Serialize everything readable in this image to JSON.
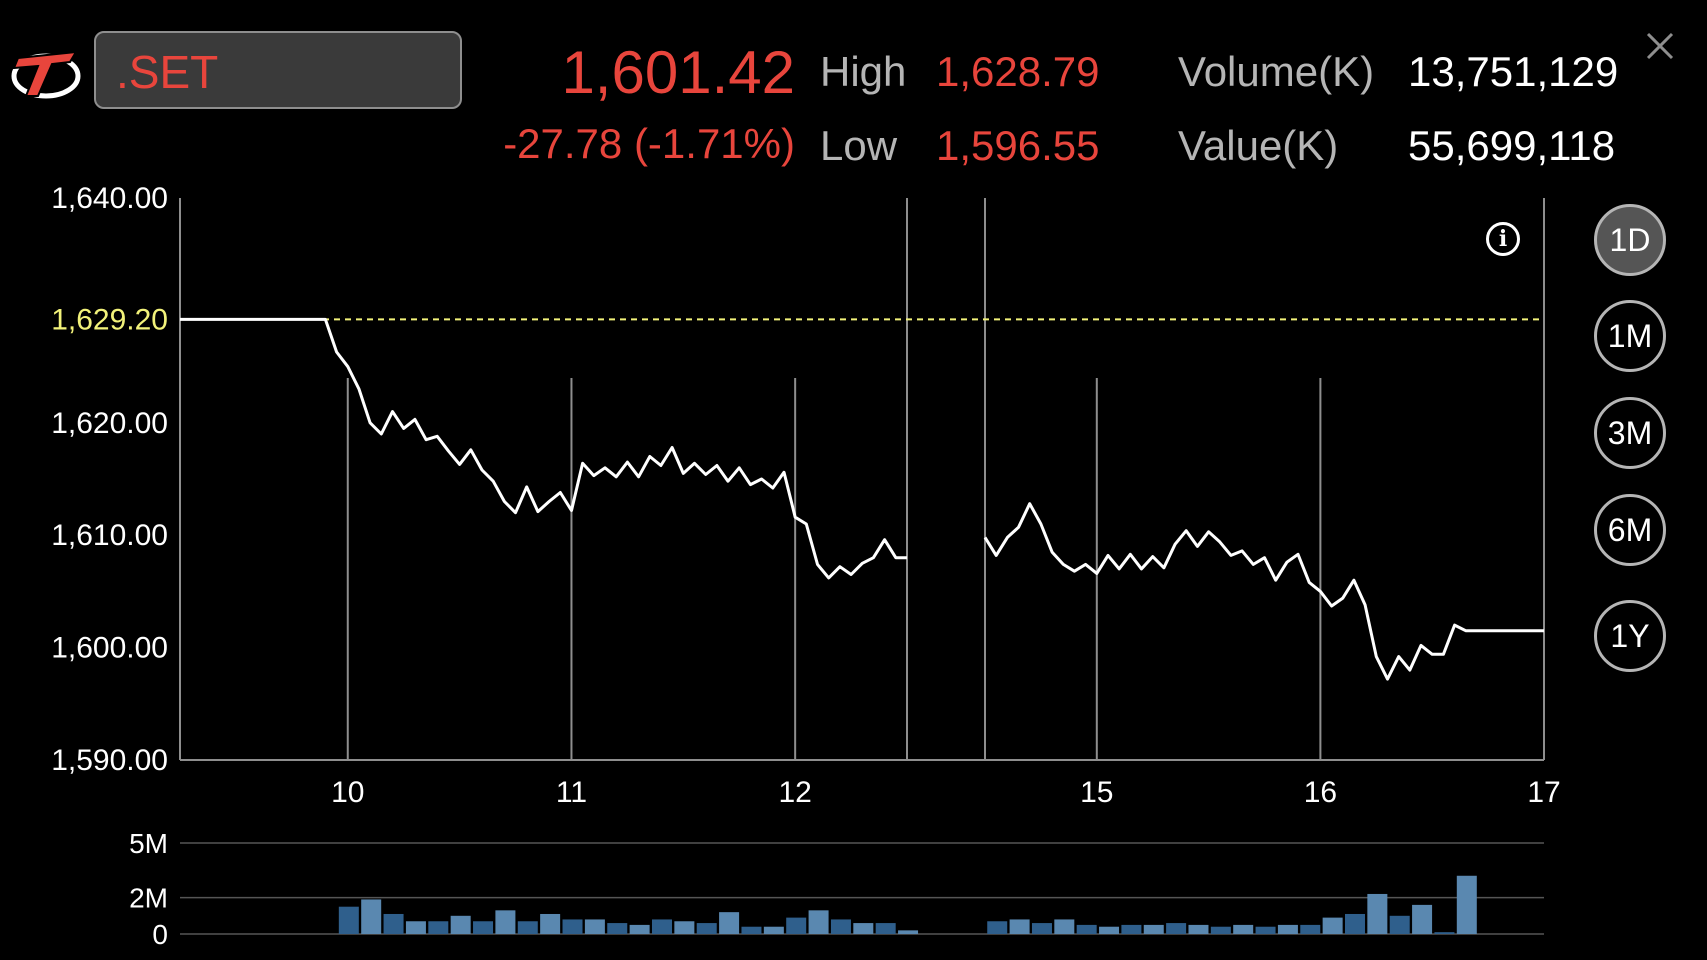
{
  "header": {
    "symbol": ".SET",
    "last_price": "1,601.42",
    "change": "-27.78 (-1.71%)",
    "high_label": "High",
    "high_value": "1,628.79",
    "low_label": "Low",
    "low_value": "1,596.55",
    "volume_label": "Volume(K)",
    "volume_value": "13,751,129",
    "value_label": "Value(K)",
    "value_value": "55,699,118"
  },
  "periods": [
    "1D",
    "1M",
    "3M",
    "6M",
    "1Y"
  ],
  "active_period": "1D",
  "colors": {
    "up_down_red": "#e8453c",
    "reference_yellow": "#f2f27a",
    "volume_bar": "#3b6a95"
  },
  "icons": {
    "logo": "app-logo-icon",
    "close": "close-icon",
    "info": "info-icon"
  },
  "chart_data": {
    "type": "line",
    "ylim": [
      1590,
      1640
    ],
    "y_ticks": [
      "1,640.00",
      "1,620.00",
      "1,610.00",
      "1,600.00",
      "1,590.00"
    ],
    "y_tick_values": [
      1640,
      1620,
      1610,
      1600,
      1590
    ],
    "reference_label": "1,629.20",
    "reference_value": 1629.2,
    "x_ticks": [
      "10",
      "11",
      "12",
      "15",
      "16",
      "17"
    ],
    "xlim": [
      9.25,
      17
    ],
    "session_break": [
      12.5,
      14.5
    ],
    "series": [
      {
        "segment1": [
          [
            9.25,
            1629.2
          ],
          [
            9.9,
            1629.2
          ],
          [
            9.95,
            1626.3
          ],
          [
            10,
            1625
          ],
          [
            10.05,
            1623
          ],
          [
            10.1,
            1620
          ],
          [
            10.15,
            1619
          ],
          [
            10.2,
            1621
          ],
          [
            10.25,
            1619.5
          ],
          [
            10.3,
            1620.3
          ],
          [
            10.35,
            1618.5
          ],
          [
            10.4,
            1618.8
          ],
          [
            10.45,
            1617.5
          ],
          [
            10.5,
            1616.3
          ],
          [
            10.55,
            1617.6
          ],
          [
            10.6,
            1615.8
          ],
          [
            10.65,
            1614.8
          ],
          [
            10.7,
            1613
          ],
          [
            10.75,
            1612
          ],
          [
            10.8,
            1614.3
          ],
          [
            10.85,
            1612.1
          ],
          [
            10.9,
            1613
          ],
          [
            10.95,
            1613.8
          ],
          [
            11,
            1612.2
          ],
          [
            11.05,
            1616.4
          ],
          [
            11.1,
            1615.3
          ],
          [
            11.15,
            1616
          ],
          [
            11.2,
            1615.2
          ],
          [
            11.25,
            1616.5
          ],
          [
            11.3,
            1615.2
          ],
          [
            11.35,
            1617
          ],
          [
            11.4,
            1616.2
          ],
          [
            11.45,
            1617.8
          ],
          [
            11.5,
            1615.5
          ],
          [
            11.55,
            1616.4
          ],
          [
            11.6,
            1615.4
          ],
          [
            11.65,
            1616.2
          ],
          [
            11.7,
            1614.8
          ],
          [
            11.75,
            1616
          ],
          [
            11.8,
            1614.5
          ],
          [
            11.85,
            1615
          ],
          [
            11.9,
            1614.2
          ],
          [
            11.95,
            1615.6
          ],
          [
            12,
            1611.6
          ],
          [
            12.05,
            1611
          ],
          [
            12.1,
            1607.4
          ],
          [
            12.15,
            1606.2
          ],
          [
            12.2,
            1607.2
          ],
          [
            12.25,
            1606.5
          ],
          [
            12.3,
            1607.5
          ],
          [
            12.35,
            1608
          ],
          [
            12.4,
            1609.6
          ],
          [
            12.45,
            1608
          ],
          [
            12.5,
            1608
          ]
        ],
        "segment2": [
          [
            14.5,
            1609.8
          ],
          [
            14.55,
            1608.2
          ],
          [
            14.6,
            1609.8
          ],
          [
            14.65,
            1610.7
          ],
          [
            14.7,
            1612.8
          ],
          [
            14.75,
            1611
          ],
          [
            14.8,
            1608.5
          ],
          [
            14.85,
            1607.4
          ],
          [
            14.9,
            1606.8
          ],
          [
            14.95,
            1607.4
          ],
          [
            15,
            1606.6
          ],
          [
            15.05,
            1608.2
          ],
          [
            15.1,
            1607
          ],
          [
            15.15,
            1608.3
          ],
          [
            15.2,
            1607
          ],
          [
            15.25,
            1608.1
          ],
          [
            15.3,
            1607.1
          ],
          [
            15.35,
            1609.2
          ],
          [
            15.4,
            1610.4
          ],
          [
            15.45,
            1609
          ],
          [
            15.5,
            1610.3
          ],
          [
            15.55,
            1609.4
          ],
          [
            15.6,
            1608.2
          ],
          [
            15.65,
            1608.6
          ],
          [
            15.7,
            1607.4
          ],
          [
            15.75,
            1608
          ],
          [
            15.8,
            1606
          ],
          [
            15.85,
            1607.6
          ],
          [
            15.9,
            1608.3
          ],
          [
            15.95,
            1605.8
          ],
          [
            16,
            1605
          ],
          [
            16.05,
            1603.7
          ],
          [
            16.1,
            1604.4
          ],
          [
            16.15,
            1606
          ],
          [
            16.2,
            1603.8
          ],
          [
            16.25,
            1599.2
          ],
          [
            16.3,
            1597.2
          ],
          [
            16.35,
            1599.2
          ],
          [
            16.4,
            1598
          ],
          [
            16.45,
            1600.2
          ],
          [
            16.5,
            1599.4
          ],
          [
            16.55,
            1599.4
          ],
          [
            16.6,
            1602
          ],
          [
            16.65,
            1601.5
          ],
          [
            17,
            1601.5
          ]
        ]
      }
    ],
    "volume": {
      "y_ticks": [
        "5M",
        "2M",
        "0"
      ],
      "y_tick_values": [
        5,
        2,
        0
      ],
      "ylim": [
        0,
        5
      ],
      "bars": [
        [
          9.96,
          1.5
        ],
        [
          10.06,
          1.9
        ],
        [
          10.16,
          1.1
        ],
        [
          10.26,
          0.7
        ],
        [
          10.36,
          0.7
        ],
        [
          10.46,
          1.0
        ],
        [
          10.56,
          0.7
        ],
        [
          10.66,
          1.3
        ],
        [
          10.76,
          0.7
        ],
        [
          10.86,
          1.1
        ],
        [
          10.96,
          0.8
        ],
        [
          11.06,
          0.8
        ],
        [
          11.16,
          0.6
        ],
        [
          11.26,
          0.5
        ],
        [
          11.36,
          0.8
        ],
        [
          11.46,
          0.7
        ],
        [
          11.56,
          0.6
        ],
        [
          11.66,
          1.2
        ],
        [
          11.76,
          0.4
        ],
        [
          11.86,
          0.4
        ],
        [
          11.96,
          0.9
        ],
        [
          12.06,
          1.3
        ],
        [
          12.16,
          0.8
        ],
        [
          12.26,
          0.6
        ],
        [
          12.36,
          0.6
        ],
        [
          12.46,
          0.2
        ],
        [
          14.51,
          0.7
        ],
        [
          14.61,
          0.8
        ],
        [
          14.71,
          0.6
        ],
        [
          14.81,
          0.8
        ],
        [
          14.91,
          0.5
        ],
        [
          15.01,
          0.4
        ],
        [
          15.11,
          0.5
        ],
        [
          15.21,
          0.5
        ],
        [
          15.31,
          0.6
        ],
        [
          15.41,
          0.5
        ],
        [
          15.51,
          0.4
        ],
        [
          15.61,
          0.5
        ],
        [
          15.71,
          0.4
        ],
        [
          15.81,
          0.5
        ],
        [
          15.91,
          0.5
        ],
        [
          16.01,
          0.9
        ],
        [
          16.11,
          1.1
        ],
        [
          16.21,
          2.2
        ],
        [
          16.31,
          1.0
        ],
        [
          16.41,
          1.6
        ],
        [
          16.51,
          0.1
        ],
        [
          16.61,
          3.2
        ]
      ]
    }
  }
}
